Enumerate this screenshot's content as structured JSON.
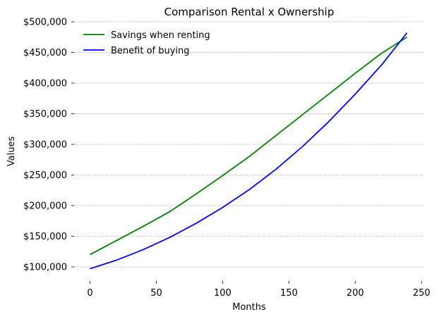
{
  "chart_data": {
    "type": "line",
    "title": "Comparison Rental x Ownership",
    "xlabel": "Months",
    "ylabel": "Values",
    "xlim": [
      -12,
      252
    ],
    "ylim": [
      77000,
      500000
    ],
    "x_ticks": [
      0,
      50,
      100,
      150,
      200,
      250
    ],
    "x_tick_labels": [
      "0",
      "50",
      "100",
      "150",
      "200",
      "250"
    ],
    "y_ticks": [
      100000,
      150000,
      200000,
      250000,
      300000,
      350000,
      400000,
      450000,
      500000
    ],
    "y_tick_labels": [
      "$100,000",
      "$150,000",
      "$200,000",
      "$250,000",
      "$300,000",
      "$350,000",
      "$400,000",
      "$450,000",
      "$500,000"
    ],
    "grid": "horizontal dashed",
    "legend_position": "top-left",
    "series": [
      {
        "name": "Savings when renting",
        "color": "#008000",
        "x": [
          0,
          20,
          40,
          60,
          80,
          100,
          120,
          140,
          160,
          180,
          200,
          220,
          239
        ],
        "y": [
          120000,
          143000,
          166000,
          190000,
          219000,
          249000,
          280000,
          314000,
          348000,
          382000,
          416000,
          449000,
          475000
        ]
      },
      {
        "name": "Benefit of buying",
        "color": "#0000ff",
        "x": [
          0,
          20,
          40,
          60,
          80,
          100,
          120,
          140,
          160,
          180,
          200,
          220,
          239
        ],
        "y": [
          97000,
          111000,
          128000,
          148000,
          171000,
          197000,
          226000,
          259000,
          296000,
          337000,
          382000,
          430000,
          482000
        ]
      }
    ]
  }
}
